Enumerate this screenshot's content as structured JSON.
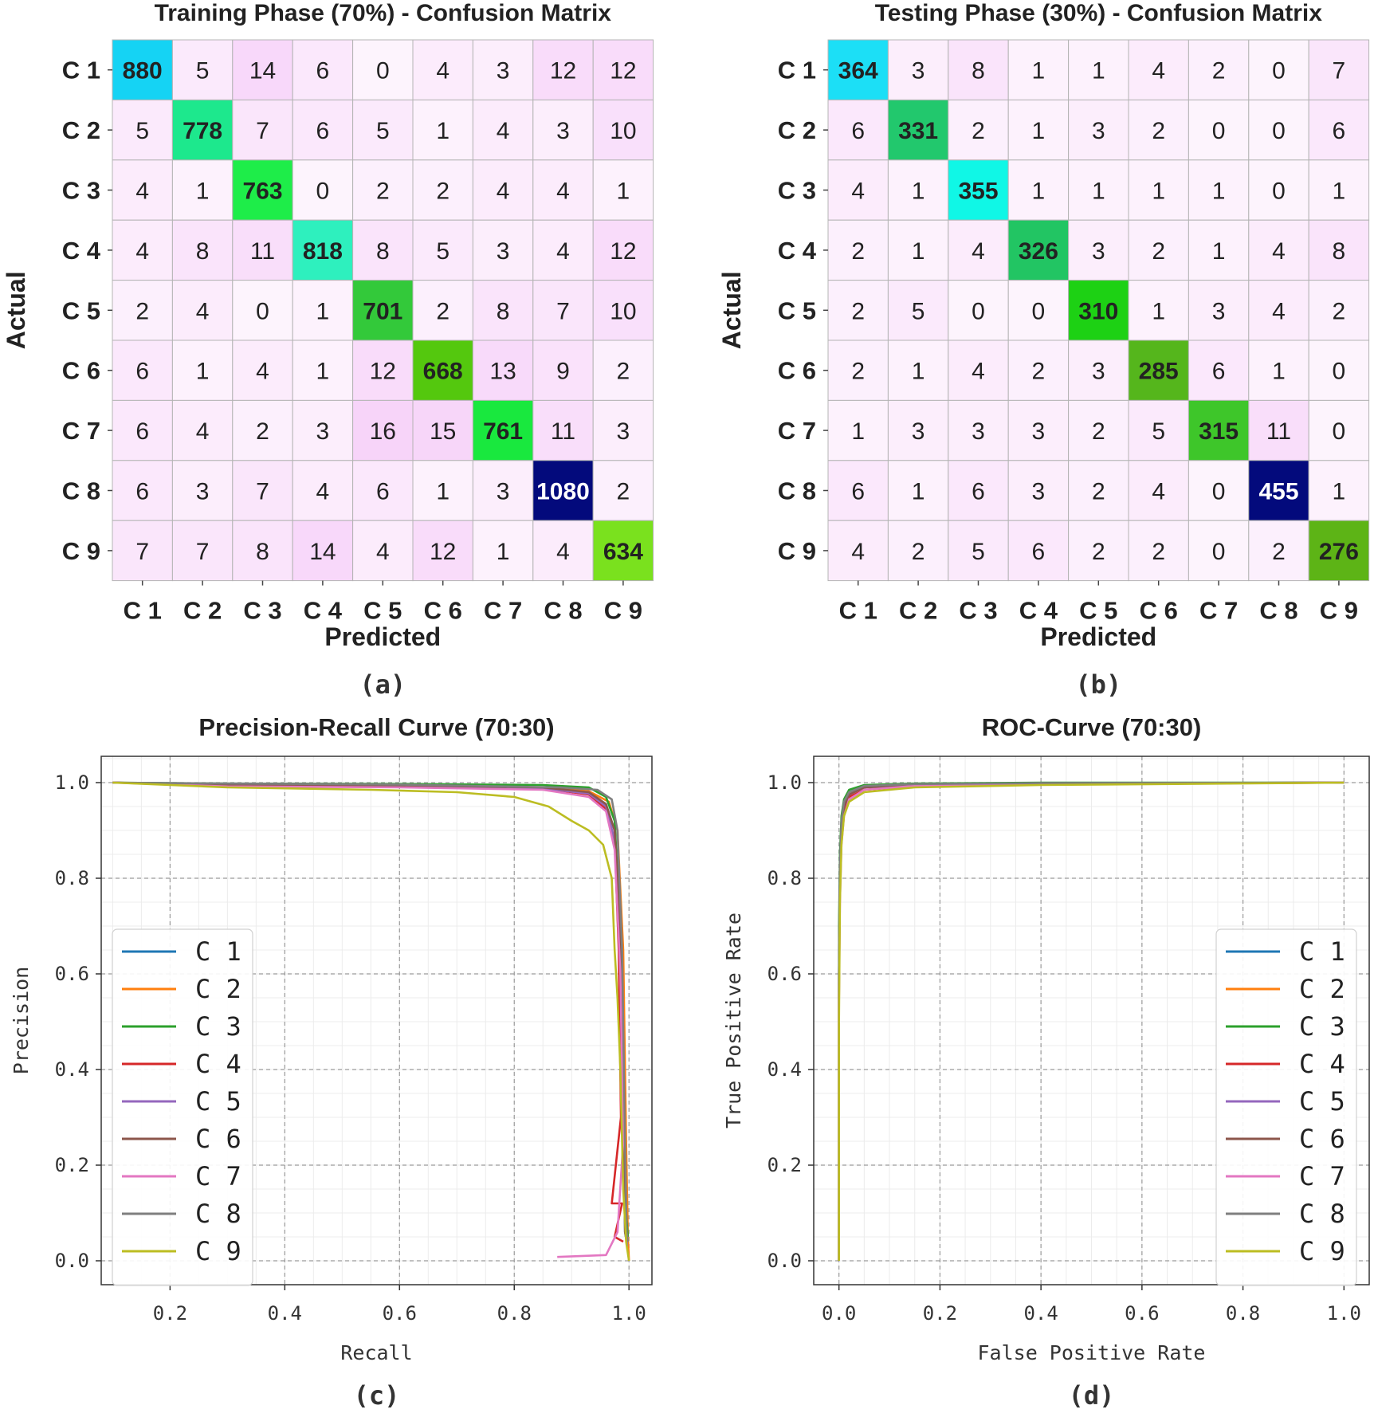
{
  "chart_data": [
    {
      "type": "heatmap",
      "panel_label": "(a)",
      "title": "Training Phase (70%) - Confusion Matrix",
      "xlabel": "Predicted",
      "ylabel": "Actual",
      "x_categories": [
        "C 1",
        "C 2",
        "C 3",
        "C 4",
        "C 5",
        "C 6",
        "C 7",
        "C 8",
        "C 9"
      ],
      "y_categories": [
        "C 1",
        "C 2",
        "C 3",
        "C 4",
        "C 5",
        "C 6",
        "C 7",
        "C 8",
        "C 9"
      ],
      "diagonal_colors": [
        "#15d3f4",
        "#1de88d",
        "#1eed49",
        "#2ef0be",
        "#33c93a",
        "#54c80e",
        "#19e83e",
        "#030a7c",
        "#7ae11e"
      ],
      "values": [
        [
          880,
          5,
          14,
          6,
          0,
          4,
          3,
          12,
          12
        ],
        [
          5,
          778,
          7,
          6,
          5,
          1,
          4,
          3,
          10
        ],
        [
          4,
          1,
          763,
          0,
          2,
          2,
          4,
          4,
          1
        ],
        [
          4,
          8,
          11,
          818,
          8,
          5,
          3,
          4,
          12
        ],
        [
          2,
          4,
          0,
          1,
          701,
          2,
          8,
          7,
          10
        ],
        [
          6,
          1,
          4,
          1,
          12,
          668,
          13,
          9,
          2
        ],
        [
          6,
          4,
          2,
          3,
          16,
          15,
          761,
          11,
          3
        ],
        [
          6,
          3,
          7,
          4,
          6,
          1,
          3,
          1080,
          2
        ],
        [
          7,
          7,
          8,
          14,
          4,
          12,
          1,
          4,
          634
        ]
      ]
    },
    {
      "type": "heatmap",
      "panel_label": "(b)",
      "title": "Testing Phase (30%) - Confusion Matrix",
      "xlabel": "Predicted",
      "ylabel": "Actual",
      "x_categories": [
        "C 1",
        "C 2",
        "C 3",
        "C 4",
        "C 5",
        "C 6",
        "C 7",
        "C 8",
        "C 9"
      ],
      "y_categories": [
        "C 1",
        "C 2",
        "C 3",
        "C 4",
        "C 5",
        "C 6",
        "C 7",
        "C 8",
        "C 9"
      ],
      "diagonal_colors": [
        "#1cdff6",
        "#22c86d",
        "#10f7e6",
        "#22c563",
        "#1dd114",
        "#55b61c",
        "#3ec62a",
        "#030a7c",
        "#5db416"
      ],
      "values": [
        [
          364,
          3,
          8,
          1,
          1,
          4,
          2,
          0,
          7
        ],
        [
          6,
          331,
          2,
          1,
          3,
          2,
          0,
          0,
          6
        ],
        [
          4,
          1,
          355,
          1,
          1,
          1,
          1,
          0,
          1
        ],
        [
          2,
          1,
          4,
          326,
          3,
          2,
          1,
          4,
          8
        ],
        [
          2,
          5,
          0,
          0,
          310,
          1,
          3,
          4,
          2
        ],
        [
          2,
          1,
          4,
          2,
          3,
          285,
          6,
          1,
          0
        ],
        [
          1,
          3,
          3,
          3,
          2,
          5,
          315,
          11,
          0
        ],
        [
          6,
          1,
          6,
          3,
          2,
          4,
          0,
          455,
          1
        ],
        [
          4,
          2,
          5,
          6,
          2,
          2,
          0,
          2,
          276
        ]
      ]
    },
    {
      "type": "line",
      "panel_label": "(c)",
      "title": "Precision-Recall Curve (70:30)",
      "xlabel": "Recall",
      "ylabel": "Precision",
      "xlim": [
        0.08,
        1.04
      ],
      "ylim": [
        -0.05,
        1.055
      ],
      "xticks": [
        0.2,
        0.4,
        0.6,
        0.8,
        1.0
      ],
      "yticks": [
        0.0,
        0.2,
        0.4,
        0.6,
        0.8,
        1.0
      ],
      "grid": true,
      "legend_position": "center-left",
      "series": [
        {
          "name": "C 1",
          "color": "#1f77b4",
          "x": [
            0.1,
            0.3,
            0.6,
            0.85,
            0.93,
            0.96,
            0.975,
            0.985,
            0.99,
            0.993,
            0.996
          ],
          "y": [
            1.0,
            0.995,
            0.994,
            0.99,
            0.98,
            0.955,
            0.9,
            0.7,
            0.3,
            0.06,
            0.04
          ]
        },
        {
          "name": "C 2",
          "color": "#ff7f0e",
          "x": [
            0.1,
            0.3,
            0.6,
            0.85,
            0.93,
            0.965,
            0.98,
            0.99,
            0.995,
            0.998,
            1.0
          ],
          "y": [
            1.0,
            0.997,
            0.995,
            0.99,
            0.982,
            0.96,
            0.9,
            0.65,
            0.25,
            0.05,
            0.0
          ]
        },
        {
          "name": "C 3",
          "color": "#2ca02c",
          "x": [
            0.1,
            0.3,
            0.6,
            0.85,
            0.93,
            0.96,
            0.975,
            0.985,
            0.99,
            0.995,
            0.998
          ],
          "y": [
            1.0,
            0.998,
            0.997,
            0.995,
            0.99,
            0.97,
            0.92,
            0.7,
            0.3,
            0.1,
            0.05
          ]
        },
        {
          "name": "C 4",
          "color": "#d62728",
          "x": [
            0.1,
            0.3,
            0.6,
            0.85,
            0.93,
            0.96,
            0.975,
            0.982,
            0.986,
            0.97,
            0.988,
            0.975,
            0.99
          ],
          "y": [
            1.0,
            0.995,
            0.993,
            0.988,
            0.975,
            0.945,
            0.88,
            0.65,
            0.3,
            0.12,
            0.12,
            0.05,
            0.04
          ]
        },
        {
          "name": "C 5",
          "color": "#9467bd",
          "x": [
            0.1,
            0.3,
            0.6,
            0.85,
            0.93,
            0.96,
            0.975,
            0.985,
            0.99,
            0.994,
            0.997
          ],
          "y": [
            1.0,
            0.996,
            0.993,
            0.988,
            0.977,
            0.95,
            0.88,
            0.68,
            0.28,
            0.07,
            0.03
          ]
        },
        {
          "name": "C 6",
          "color": "#8c564b",
          "x": [
            0.1,
            0.3,
            0.6,
            0.85,
            0.93,
            0.96,
            0.975,
            0.985,
            0.99,
            0.993,
            0.996
          ],
          "y": [
            1.0,
            0.996,
            0.994,
            0.99,
            0.98,
            0.955,
            0.9,
            0.7,
            0.3,
            0.06,
            0.04
          ]
        },
        {
          "name": "C 7",
          "color": "#e377c2",
          "x": [
            0.1,
            0.3,
            0.6,
            0.85,
            0.93,
            0.96,
            0.975,
            0.985,
            0.99,
            0.98,
            0.96,
            0.875
          ],
          "y": [
            1.0,
            0.992,
            0.99,
            0.985,
            0.97,
            0.94,
            0.86,
            0.6,
            0.25,
            0.06,
            0.012,
            0.008
          ]
        },
        {
          "name": "C 8",
          "color": "#7f7f7f",
          "x": [
            0.1,
            0.3,
            0.6,
            0.88,
            0.945,
            0.97,
            0.98,
            0.988,
            0.993,
            0.996,
            0.998
          ],
          "y": [
            1.0,
            0.998,
            0.996,
            0.99,
            0.985,
            0.965,
            0.9,
            0.65,
            0.25,
            0.06,
            0.04
          ]
        },
        {
          "name": "C 9",
          "color": "#bcbd22",
          "x": [
            0.1,
            0.3,
            0.55,
            0.7,
            0.8,
            0.86,
            0.9,
            0.93,
            0.955,
            0.97,
            0.975,
            0.98,
            0.985,
            0.99,
            0.995,
            1.0
          ],
          "y": [
            1.0,
            0.99,
            0.985,
            0.98,
            0.97,
            0.95,
            0.92,
            0.9,
            0.87,
            0.8,
            0.65,
            0.55,
            0.4,
            0.15,
            0.04,
            0.0
          ]
        }
      ]
    },
    {
      "type": "line",
      "panel_label": "(d)",
      "title": "ROC-Curve (70:30)",
      "xlabel": "False Positive Rate",
      "ylabel": "True Positive Rate",
      "xlim": [
        -0.05,
        1.05
      ],
      "ylim": [
        -0.05,
        1.055
      ],
      "xticks": [
        0.0,
        0.2,
        0.4,
        0.6,
        0.8,
        1.0
      ],
      "yticks": [
        0.0,
        0.2,
        0.4,
        0.6,
        0.8,
        1.0
      ],
      "grid": true,
      "legend_position": "center-right",
      "series": [
        {
          "name": "C 1",
          "color": "#1f77b4",
          "x": [
            0,
            0,
            0.002,
            0.005,
            0.01,
            0.02,
            0.05,
            0.15,
            0.4,
            1.0
          ],
          "y": [
            0,
            0.6,
            0.8,
            0.9,
            0.95,
            0.975,
            0.99,
            0.995,
            0.998,
            1.0
          ]
        },
        {
          "name": "C 2",
          "color": "#ff7f0e",
          "x": [
            0,
            0,
            0.002,
            0.005,
            0.01,
            0.02,
            0.05,
            0.15,
            0.4,
            1.0
          ],
          "y": [
            0,
            0.55,
            0.78,
            0.88,
            0.94,
            0.97,
            0.985,
            0.993,
            0.997,
            1.0
          ]
        },
        {
          "name": "C 3",
          "color": "#2ca02c",
          "x": [
            0,
            0,
            0.002,
            0.005,
            0.01,
            0.02,
            0.05,
            0.15,
            0.4,
            1.0
          ],
          "y": [
            0,
            0.7,
            0.85,
            0.93,
            0.965,
            0.985,
            0.995,
            0.998,
            1.0,
            1.0
          ]
        },
        {
          "name": "C 4",
          "color": "#d62728",
          "x": [
            0,
            0,
            0.002,
            0.005,
            0.01,
            0.02,
            0.05,
            0.15,
            0.4,
            1.0
          ],
          "y": [
            0,
            0.58,
            0.8,
            0.9,
            0.945,
            0.97,
            0.985,
            0.993,
            0.997,
            1.0
          ]
        },
        {
          "name": "C 5",
          "color": "#9467bd",
          "x": [
            0,
            0,
            0.002,
            0.005,
            0.01,
            0.02,
            0.05,
            0.15,
            0.4,
            1.0
          ],
          "y": [
            0,
            0.6,
            0.8,
            0.9,
            0.95,
            0.975,
            0.99,
            0.995,
            0.998,
            1.0
          ]
        },
        {
          "name": "C 6",
          "color": "#8c564b",
          "x": [
            0,
            0,
            0.002,
            0.005,
            0.01,
            0.02,
            0.05,
            0.15,
            0.4,
            1.0
          ],
          "y": [
            0,
            0.6,
            0.8,
            0.9,
            0.95,
            0.975,
            0.99,
            0.995,
            0.998,
            1.0
          ]
        },
        {
          "name": "C 7",
          "color": "#e377c2",
          "x": [
            0,
            0,
            0.002,
            0.005,
            0.01,
            0.02,
            0.05,
            0.15,
            0.4,
            1.0
          ],
          "y": [
            0,
            0.55,
            0.75,
            0.87,
            0.93,
            0.965,
            0.985,
            0.993,
            0.997,
            1.0
          ]
        },
        {
          "name": "C 8",
          "color": "#7f7f7f",
          "x": [
            0,
            0,
            0.002,
            0.005,
            0.01,
            0.02,
            0.05,
            0.15,
            0.4,
            1.0
          ],
          "y": [
            0,
            0.65,
            0.83,
            0.92,
            0.96,
            0.98,
            0.993,
            0.997,
            0.999,
            1.0
          ]
        },
        {
          "name": "C 9",
          "color": "#bcbd22",
          "x": [
            0,
            0,
            0.002,
            0.005,
            0.01,
            0.02,
            0.05,
            0.15,
            0.4,
            1.0
          ],
          "y": [
            0,
            0.5,
            0.75,
            0.87,
            0.93,
            0.96,
            0.98,
            0.99,
            0.995,
            1.0
          ]
        }
      ]
    }
  ]
}
